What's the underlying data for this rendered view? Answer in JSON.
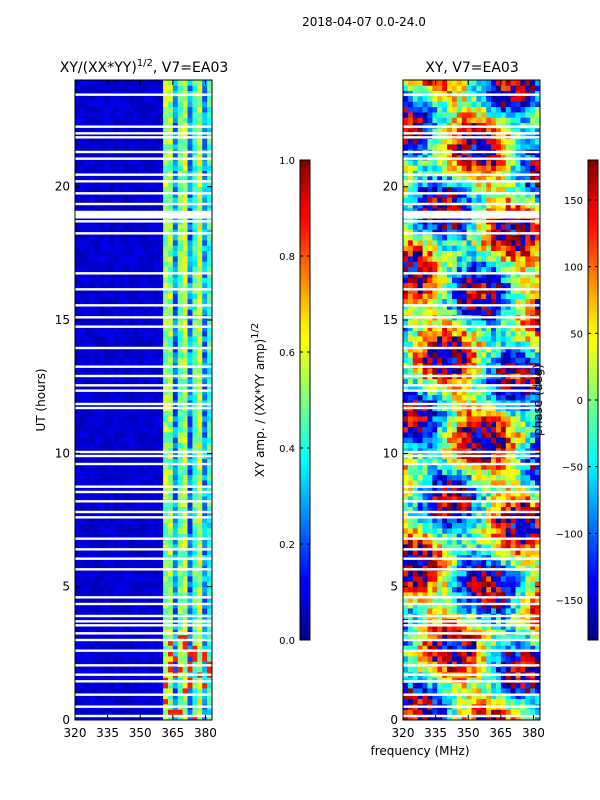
{
  "suptitle": "2018-04-07 0.0-24.0",
  "chart_data": [
    {
      "type": "heatmap",
      "title": "XY/(XX*YY)",
      "title_exponent": "1/2",
      "title_suffix": ", V7=EA03",
      "xlabel": "",
      "ylabel": "UT (hours)",
      "xlim": [
        320,
        383
      ],
      "ylim": [
        0,
        24
      ],
      "xticks": [
        "320",
        "335",
        "350",
        "365",
        "380"
      ],
      "xtick_values": [
        320,
        335,
        350,
        365,
        380
      ],
      "yticks": [
        "0",
        "5",
        "10",
        "15",
        "20"
      ],
      "ytick_values": [
        0,
        5,
        10,
        15,
        20
      ],
      "colormap": "jet",
      "colorbar": {
        "label": "XY amp. / (XX*YY amp)",
        "label_exponent": "1/2",
        "range": [
          0.0,
          1.0
        ],
        "ticks": [
          "0.0",
          "0.2",
          "0.4",
          "0.6",
          "0.8",
          "1.0"
        ],
        "tick_values": [
          0.0,
          0.2,
          0.4,
          0.6,
          0.8,
          1.0
        ]
      },
      "description_values": {
        "low_freq_level": 0.05,
        "high_freq_band_start_mhz": 361,
        "high_freq_peak_level": 0.5
      }
    },
    {
      "type": "heatmap",
      "title": "XY, V7=EA03",
      "xlabel": "frequency (MHz)",
      "ylabel": "",
      "xlim": [
        320,
        383
      ],
      "ylim": [
        0,
        24
      ],
      "xticks": [
        "320",
        "335",
        "350",
        "365",
        "380"
      ],
      "xtick_values": [
        320,
        335,
        350,
        365,
        380
      ],
      "yticks": [
        "0",
        "5",
        "10",
        "15",
        "20"
      ],
      "ytick_values": [
        0,
        5,
        10,
        15,
        20
      ],
      "colormap": "jet",
      "colorbar": {
        "label": "phase (deg)",
        "range": [
          -180,
          180
        ],
        "ticks": [
          "150",
          "100",
          "50",
          "0",
          "−50",
          "−100",
          "−150"
        ],
        "tick_values": [
          150,
          100,
          50,
          0,
          -50,
          -100,
          -150
        ]
      }
    }
  ],
  "flagged_hours": [
    0.15,
    0.5,
    0.95,
    1.45,
    1.7,
    2.05,
    2.6,
    3.0,
    3.25,
    3.55,
    3.7,
    3.9,
    4.35,
    4.6,
    5.65,
    6.05,
    6.4,
    6.8,
    7.6,
    7.8,
    8.2,
    8.55,
    8.75,
    9.6,
    9.9,
    10.05,
    11.7,
    11.85,
    12.35,
    12.55,
    12.9,
    13.25,
    13.95,
    14.75,
    15.1,
    15.55,
    16.15,
    16.75,
    18.25,
    18.7,
    18.85,
    19.05,
    19.35,
    19.75,
    20.2,
    20.45,
    21.05,
    21.3,
    21.85,
    22.0,
    22.25,
    23.45
  ]
}
